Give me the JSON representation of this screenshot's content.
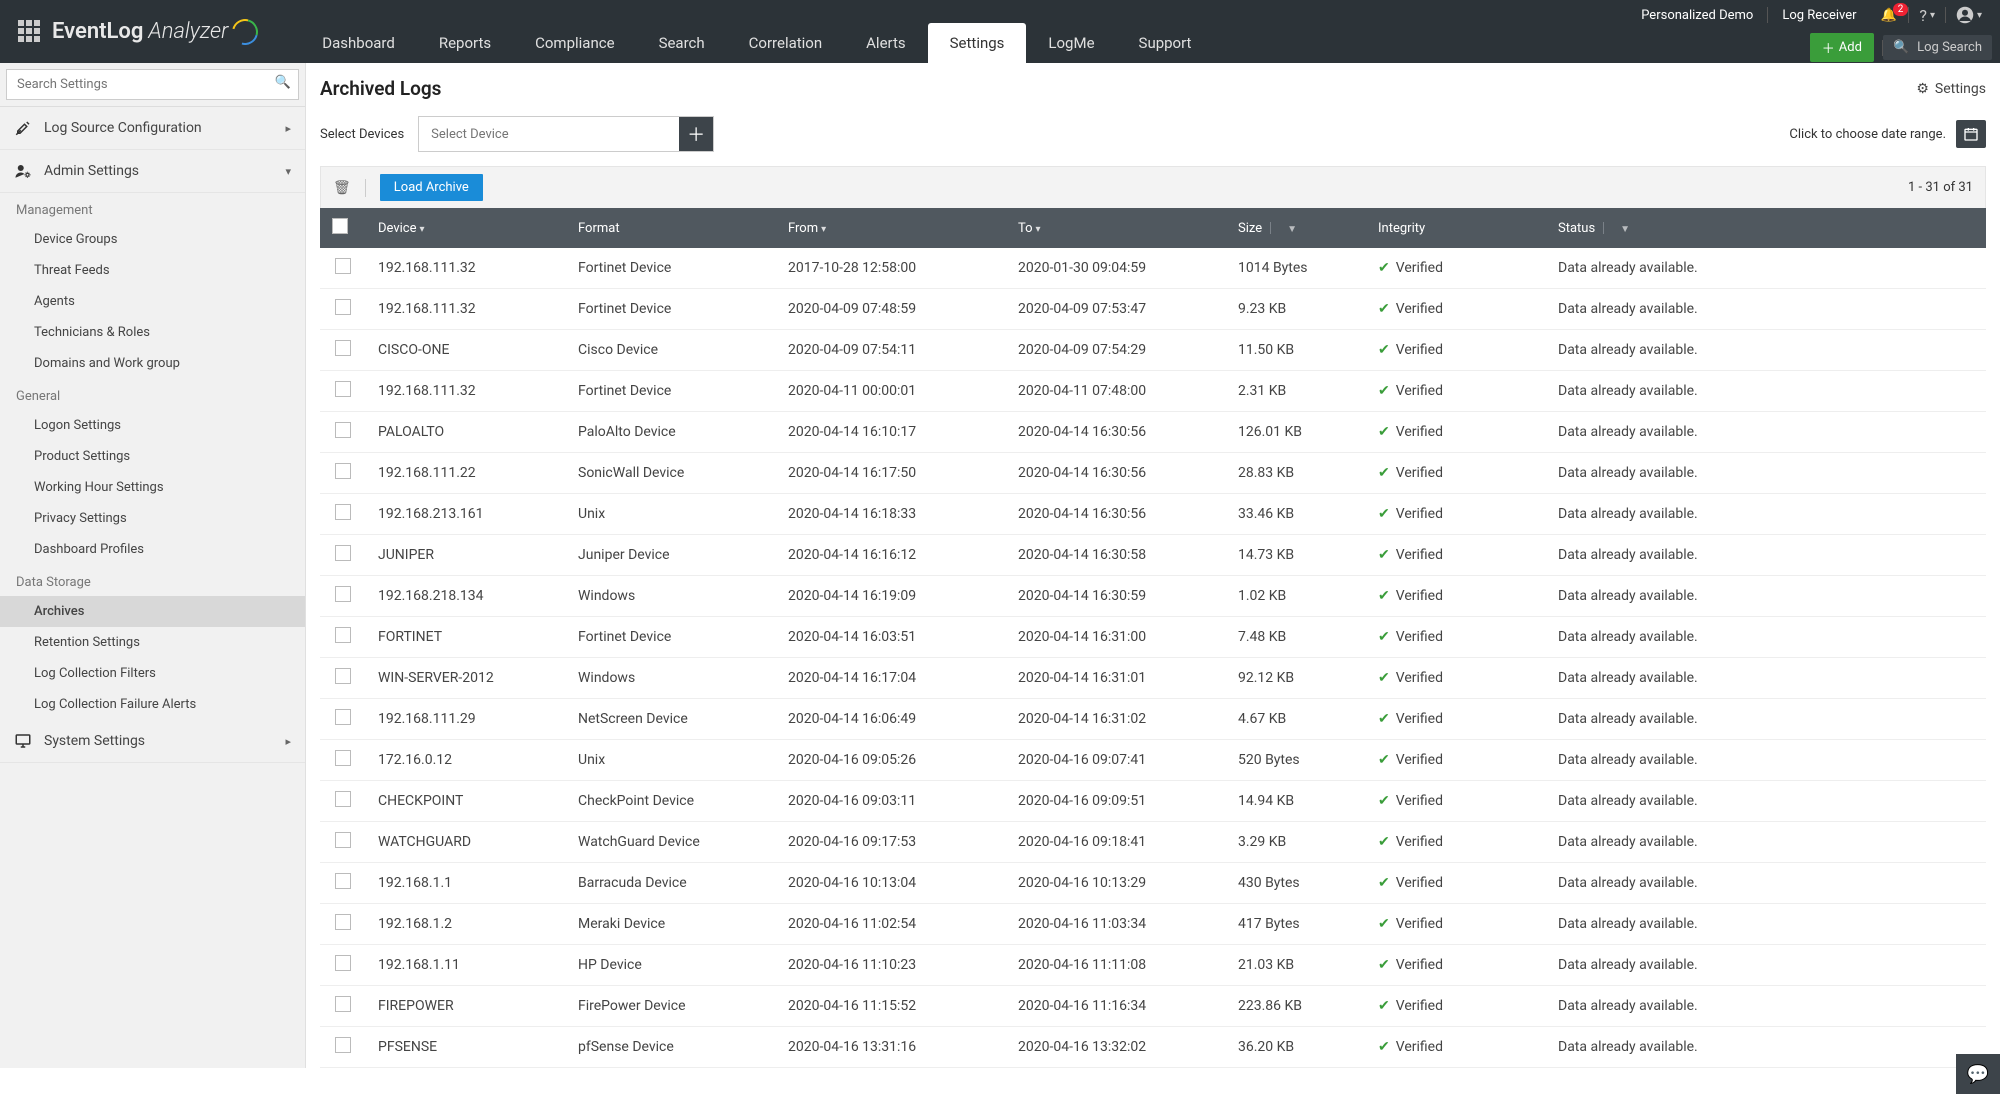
{
  "brand": {
    "name1": "EventLog",
    "name2": "Analyzer"
  },
  "topnav": {
    "items": [
      "Dashboard",
      "Reports",
      "Compliance",
      "Search",
      "Correlation",
      "Alerts",
      "Settings",
      "LogMe",
      "Support"
    ],
    "active_index": 6
  },
  "top_right": {
    "demo": "Personalized Demo",
    "receiver": "Log Receiver",
    "notif_count": "2",
    "add": "Add",
    "search_placeholder": "Log Search"
  },
  "sidebar": {
    "search_placeholder": "Search Settings",
    "cats": [
      {
        "label": "Log Source Configuration",
        "expandable": true,
        "expanded": false,
        "icon": "tools"
      },
      {
        "label": "Admin Settings",
        "expandable": true,
        "expanded": true,
        "icon": "user-gear",
        "groups": [
          {
            "label": "Management",
            "items": [
              "Device Groups",
              "Threat Feeds",
              "Agents",
              "Technicians & Roles",
              "Domains and Work group"
            ]
          },
          {
            "label": "General",
            "items": [
              "Logon Settings",
              "Product Settings",
              "Working Hour Settings",
              "Privacy Settings",
              "Dashboard Profiles"
            ]
          },
          {
            "label": "Data Storage",
            "items": [
              "Archives",
              "Retention Settings",
              "Log Collection Filters",
              "Log Collection Failure Alerts"
            ],
            "active_index": 0
          }
        ]
      },
      {
        "label": "System Settings",
        "expandable": true,
        "expanded": false,
        "icon": "monitor"
      }
    ]
  },
  "page": {
    "title": "Archived Logs",
    "settings": "Settings",
    "select_devices_label": "Select Devices",
    "select_device_placeholder": "Select Device",
    "date_prompt": "Click to choose date range.",
    "load_archive": "Load Archive",
    "pager": "1 - 31 of 31"
  },
  "table": {
    "headers": {
      "device": "Device",
      "format": "Format",
      "from": "From",
      "to": "To",
      "size": "Size",
      "integrity": "Integrity",
      "status": "Status"
    },
    "verified": "Verified",
    "status_text": "Data already available.",
    "rows": [
      {
        "device": "192.168.111.32",
        "format": "Fortinet Device",
        "from": "2017-10-28 12:58:00",
        "to": "2020-01-30 09:04:59",
        "size": "1014 Bytes"
      },
      {
        "device": "192.168.111.32",
        "format": "Fortinet Device",
        "from": "2020-04-09 07:48:59",
        "to": "2020-04-09 07:53:47",
        "size": "9.23 KB"
      },
      {
        "device": "CISCO-ONE",
        "format": "Cisco Device",
        "from": "2020-04-09 07:54:11",
        "to": "2020-04-09 07:54:29",
        "size": "11.50 KB"
      },
      {
        "device": "192.168.111.32",
        "format": "Fortinet Device",
        "from": "2020-04-11 00:00:01",
        "to": "2020-04-11 07:48:00",
        "size": "2.31 KB"
      },
      {
        "device": "PALOALTO",
        "format": "PaloAlto Device",
        "from": "2020-04-14 16:10:17",
        "to": "2020-04-14 16:30:56",
        "size": "126.01 KB"
      },
      {
        "device": "192.168.111.22",
        "format": "SonicWall Device",
        "from": "2020-04-14 16:17:50",
        "to": "2020-04-14 16:30:56",
        "size": "28.83 KB"
      },
      {
        "device": "192.168.213.161",
        "format": "Unix",
        "from": "2020-04-14 16:18:33",
        "to": "2020-04-14 16:30:56",
        "size": "33.46 KB"
      },
      {
        "device": "JUNIPER",
        "format": "Juniper Device",
        "from": "2020-04-14 16:16:12",
        "to": "2020-04-14 16:30:58",
        "size": "14.73 KB"
      },
      {
        "device": "192.168.218.134",
        "format": "Windows",
        "from": "2020-04-14 16:19:09",
        "to": "2020-04-14 16:30:59",
        "size": "1.02 KB"
      },
      {
        "device": "FORTINET",
        "format": "Fortinet Device",
        "from": "2020-04-14 16:03:51",
        "to": "2020-04-14 16:31:00",
        "size": "7.48 KB"
      },
      {
        "device": "WIN-SERVER-2012",
        "format": "Windows",
        "from": "2020-04-14 16:17:04",
        "to": "2020-04-14 16:31:01",
        "size": "92.12 KB"
      },
      {
        "device": "192.168.111.29",
        "format": "NetScreen Device",
        "from": "2020-04-14 16:06:49",
        "to": "2020-04-14 16:31:02",
        "size": "4.67 KB"
      },
      {
        "device": "172.16.0.12",
        "format": "Unix",
        "from": "2020-04-16 09:05:26",
        "to": "2020-04-16 09:07:41",
        "size": "520 Bytes"
      },
      {
        "device": "CHECKPOINT",
        "format": "CheckPoint Device",
        "from": "2020-04-16 09:03:11",
        "to": "2020-04-16 09:09:51",
        "size": "14.94 KB"
      },
      {
        "device": "WATCHGUARD",
        "format": "WatchGuard Device",
        "from": "2020-04-16 09:17:53",
        "to": "2020-04-16 09:18:41",
        "size": "3.29 KB"
      },
      {
        "device": "192.168.1.1",
        "format": "Barracuda Device",
        "from": "2020-04-16 10:13:04",
        "to": "2020-04-16 10:13:29",
        "size": "430 Bytes"
      },
      {
        "device": "192.168.1.2",
        "format": "Meraki Device",
        "from": "2020-04-16 11:02:54",
        "to": "2020-04-16 11:03:34",
        "size": "417 Bytes"
      },
      {
        "device": "192.168.1.11",
        "format": "HP Device",
        "from": "2020-04-16 11:10:23",
        "to": "2020-04-16 11:11:08",
        "size": "21.03 KB"
      },
      {
        "device": "FIREPOWER",
        "format": "FirePower Device",
        "from": "2020-04-16 11:15:52",
        "to": "2020-04-16 11:16:34",
        "size": "223.86 KB"
      },
      {
        "device": "PFSENSE",
        "format": "pfSense Device",
        "from": "2020-04-16 13:31:16",
        "to": "2020-04-16 13:32:02",
        "size": "36.20 KB"
      }
    ]
  },
  "colors": {
    "topbar_bg": "#2c3338",
    "thead_bg": "#50585f",
    "add_btn": "#3a9d3a",
    "load_btn": "#1a8cd8",
    "verify_green": "#3a9d3a"
  }
}
